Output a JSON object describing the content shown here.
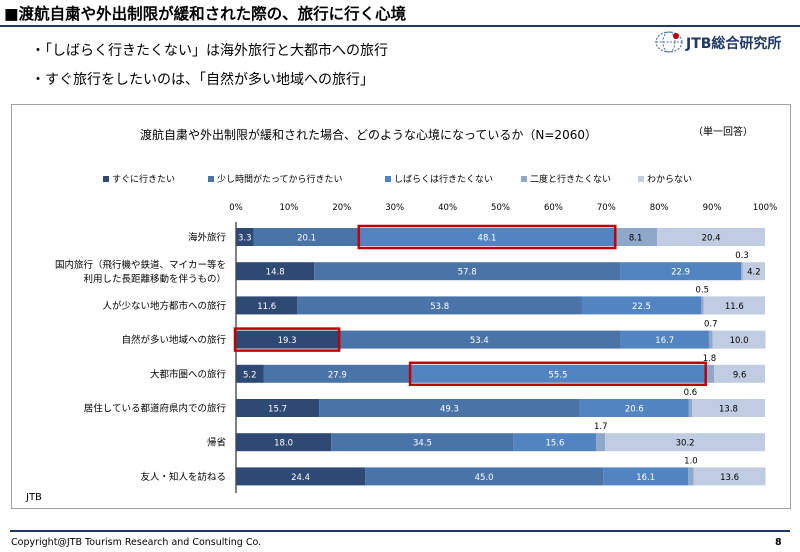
{
  "header": {
    "title": "■渡航自粛や外出制限が緩和された際の、旅行に行く心境"
  },
  "logo": {
    "text": "JTB総合研究所",
    "icon": "globe-icon"
  },
  "bullets": [
    "・「しばらく行きたくない」は海外旅行と大都市への旅行",
    "・すぐ旅行をしたいのは、「自然が多い地域への旅行」"
  ],
  "footer": {
    "copyright": "Copyright@JTB Tourism Research and Consulting Co.",
    "page": "8"
  },
  "chart_data": {
    "type": "bar",
    "orientation": "horizontal",
    "stacked": true,
    "title": "渡航自粛や外出制限が緩和された場合、どのような心境になっているか（N=2060）",
    "note": "（単一回答）",
    "source": "JTB",
    "xlim": [
      0,
      100
    ],
    "x_ticks": [
      "0%",
      "10%",
      "20%",
      "30%",
      "40%",
      "50%",
      "60%",
      "70%",
      "80%",
      "90%",
      "100%"
    ],
    "legend_position": "top",
    "categories": [
      [
        "海外旅行"
      ],
      [
        "国内旅行（飛行機や鉄道、マイカー等を",
        "利用した長距離移動を伴うもの）"
      ],
      [
        "人が少ない地方都市への旅行"
      ],
      [
        "自然が多い地域への旅行"
      ],
      [
        "大都市圏への旅行"
      ],
      [
        "居住している都道府県内での旅行"
      ],
      [
        "帰省"
      ],
      [
        "友人・知人を訪ねる"
      ]
    ],
    "series": [
      {
        "name": "すぐに行きたい",
        "color": "#2e4a74",
        "values": [
          3.3,
          14.8,
          11.6,
          19.3,
          5.2,
          15.7,
          18.0,
          24.4
        ]
      },
      {
        "name": "少し時間がたってから行きたい",
        "color": "#4a74a8",
        "values": [
          20.1,
          57.8,
          53.8,
          53.4,
          27.9,
          49.3,
          34.5,
          45.0
        ]
      },
      {
        "name": "しばらくは行きたくない",
        "color": "#5184c0",
        "values": [
          48.1,
          22.9,
          22.5,
          16.7,
          55.5,
          20.6,
          15.6,
          16.1
        ]
      },
      {
        "name": "二度と行きたくない",
        "color": "#8fa7c9",
        "values": [
          8.1,
          0.3,
          0.5,
          0.7,
          1.8,
          0.6,
          1.7,
          1.0
        ]
      },
      {
        "name": "わからない",
        "color": "#bfcce2",
        "values": [
          20.4,
          4.2,
          11.6,
          10.0,
          9.6,
          13.8,
          30.2,
          13.6
        ]
      }
    ],
    "value_labels": [
      [
        "3.3",
        "20.1",
        "48.1",
        "8.1",
        "20.4"
      ],
      [
        "14.8",
        "57.8",
        "22.9",
        "0.3",
        "4.2"
      ],
      [
        "11.6",
        "53.8",
        "22.5",
        "0.5",
        "11.6"
      ],
      [
        "19.3",
        "53.4",
        "16.7",
        "0.7",
        "10.0"
      ],
      [
        "5.2",
        "27.9",
        "55.5",
        "1.8",
        "9.6"
      ],
      [
        "15.7",
        "49.3",
        "20.6",
        "0.6",
        "13.8"
      ],
      [
        "18.0",
        "34.5",
        "15.6",
        "1.7",
        "30.2"
      ],
      [
        "24.4",
        "45.0",
        "16.1",
        "1.0",
        "13.6"
      ]
    ],
    "highlights": [
      {
        "row": 0,
        "series": 2,
        "color": "#c00000"
      },
      {
        "row": 3,
        "series": 0,
        "color": "#c00000"
      },
      {
        "row": 4,
        "series": 2,
        "color": "#c00000"
      }
    ]
  }
}
